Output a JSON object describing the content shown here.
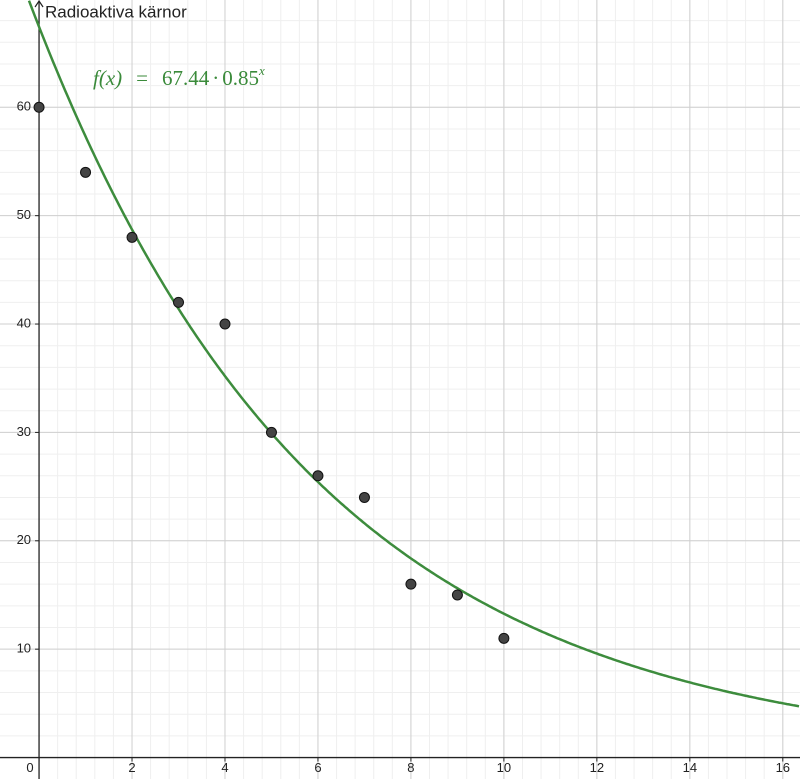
{
  "chart_data": {
    "type": "scatter",
    "y_label": "Radioaktiva kärnor",
    "x": [
      0,
      1,
      2,
      3,
      4,
      5,
      6,
      7,
      8,
      9,
      10
    ],
    "values": [
      60,
      54,
      48,
      42,
      40,
      30,
      26,
      24,
      16,
      15,
      11
    ],
    "color": "#444444",
    "fit": {
      "lhs": "f(x)",
      "eq": "=",
      "a": 67.44,
      "op": "·",
      "b": 0.85,
      "exp": "x",
      "color": "#3d8c3d"
    },
    "xlim": [
      -0.84,
      16.37
    ],
    "ylim": [
      -1.98,
      69.9
    ],
    "xticks": [
      0,
      2,
      4,
      6,
      8,
      10,
      12,
      14,
      16
    ],
    "yticks": [
      10,
      20,
      30,
      40,
      50,
      60
    ],
    "grid": true
  }
}
